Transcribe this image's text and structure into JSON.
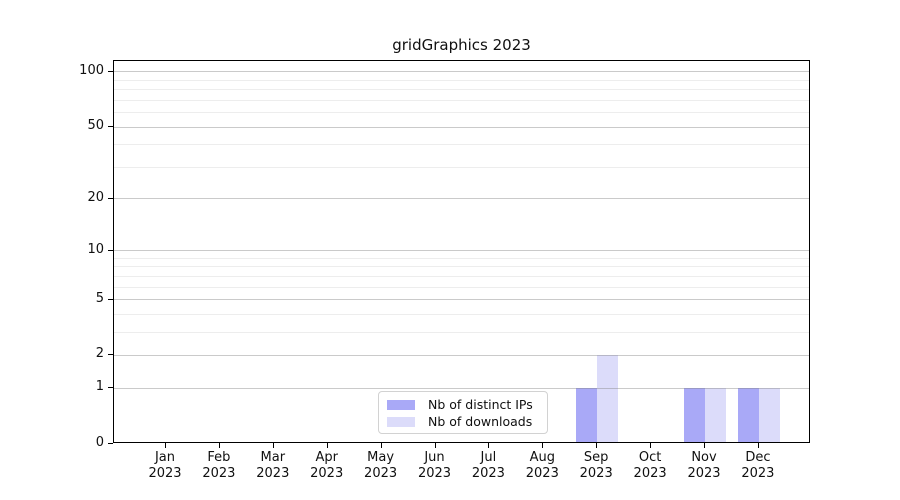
{
  "chart_data": {
    "type": "bar",
    "title": "gridGraphics 2023",
    "categories": [
      "Jan",
      "Feb",
      "Mar",
      "Apr",
      "May",
      "Jun",
      "Jul",
      "Aug",
      "Sep",
      "Oct",
      "Nov",
      "Dec"
    ],
    "x_tick_second_line": "2023",
    "series": [
      {
        "name": "Nb of distinct IPs",
        "color": "#a9a9f7",
        "values": [
          0,
          0,
          0,
          0,
          0,
          0,
          0,
          0,
          1,
          0,
          1,
          1
        ]
      },
      {
        "name": "Nb of downloads",
        "color": "#dcdcfa",
        "values": [
          0,
          0,
          0,
          0,
          0,
          0,
          0,
          0,
          2,
          0,
          1,
          1
        ]
      }
    ],
    "yscale": "log1p",
    "ylim": [
      0,
      114.7
    ],
    "y_major_ticks": [
      0,
      1,
      2,
      5,
      10,
      20,
      50,
      100
    ],
    "y_minor_gridlines": [
      3,
      4,
      6,
      7,
      8,
      9,
      30,
      40,
      60,
      70,
      80,
      90
    ],
    "grid": "horizontal",
    "legend_position": "bottom-center",
    "colors": {
      "major_grid": "rgba(128,128,128,0.42)",
      "minor_grid": "rgba(128,128,128,0.14)",
      "axis": "#000000",
      "background": "#ffffff",
      "text": "#101010"
    }
  }
}
